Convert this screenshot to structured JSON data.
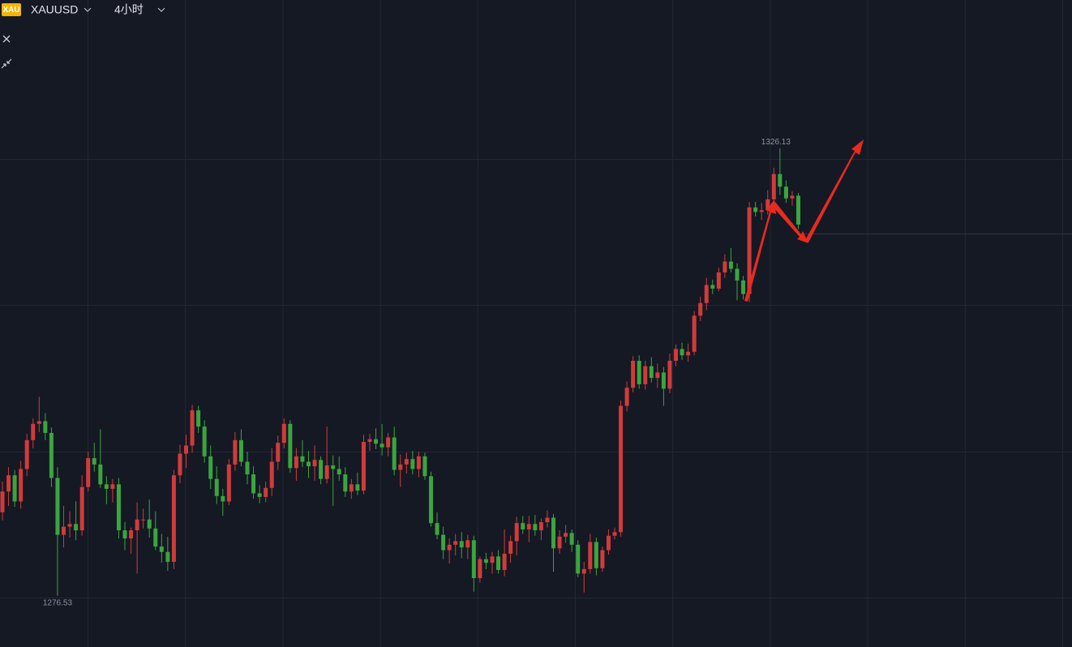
{
  "chart_data": {
    "type": "candlestick",
    "symbol_badge": "XAU",
    "symbol": "XAUUSD",
    "timeframe": "4小时",
    "up_color": "#d13b3b",
    "down_color": "#3aa53f",
    "ylim": [
      1270.86,
      1342.6
    ],
    "candles": [
      [
        1285.8,
        1289.2,
        1284.9,
        1288.1
      ],
      [
        1288.1,
        1290.8,
        1286.5,
        1289.9
      ],
      [
        1289.9,
        1290.5,
        1286.4,
        1287.0
      ],
      [
        1287.0,
        1291.5,
        1286.2,
        1290.6
      ],
      [
        1290.6,
        1294.5,
        1289.8,
        1293.8
      ],
      [
        1293.8,
        1296.2,
        1292.9,
        1295.6
      ],
      [
        1295.6,
        1298.6,
        1294.7,
        1295.9
      ],
      [
        1295.9,
        1296.8,
        1293.8,
        1294.6
      ],
      [
        1294.6,
        1295.2,
        1288.6,
        1289.6
      ],
      [
        1289.6,
        1290.8,
        1276.53,
        1283.3
      ],
      [
        1283.3,
        1286.5,
        1281.9,
        1284.2
      ],
      [
        1284.2,
        1285.9,
        1283.0,
        1284.5
      ],
      [
        1284.5,
        1287.0,
        1282.7,
        1283.8
      ],
      [
        1283.8,
        1289.9,
        1283.2,
        1288.6
      ],
      [
        1288.6,
        1292.5,
        1288.1,
        1291.8
      ],
      [
        1291.8,
        1293.5,
        1290.3,
        1291.1
      ],
      [
        1291.1,
        1295.0,
        1288.5,
        1288.9
      ],
      [
        1288.9,
        1289.8,
        1286.7,
        1288.4
      ],
      [
        1288.4,
        1289.5,
        1286.9,
        1288.9
      ],
      [
        1288.9,
        1289.6,
        1282.9,
        1283.8
      ],
      [
        1283.8,
        1284.7,
        1281.6,
        1282.9
      ],
      [
        1282.9,
        1284.1,
        1281.2,
        1283.8
      ],
      [
        1283.8,
        1286.9,
        1279.0,
        1285.0
      ],
      [
        1285.0,
        1286.2,
        1284.0,
        1285.0
      ],
      [
        1285.0,
        1287.2,
        1283.0,
        1284.0
      ],
      [
        1284.0,
        1285.9,
        1281.6,
        1282.0
      ],
      [
        1282.0,
        1283.4,
        1280.2,
        1281.4
      ],
      [
        1281.4,
        1283.1,
        1279.3,
        1280.3
      ],
      [
        1280.3,
        1290.5,
        1279.5,
        1289.9
      ],
      [
        1289.9,
        1293.3,
        1289.0,
        1292.3
      ],
      [
        1292.3,
        1294.4,
        1290.7,
        1293.2
      ],
      [
        1293.2,
        1297.7,
        1292.4,
        1297.1
      ],
      [
        1297.1,
        1297.6,
        1294.6,
        1295.3
      ],
      [
        1295.3,
        1296.0,
        1291.3,
        1292.0
      ],
      [
        1292.0,
        1293.2,
        1288.4,
        1289.5
      ],
      [
        1289.5,
        1290.9,
        1286.7,
        1287.6
      ],
      [
        1287.6,
        1288.4,
        1285.4,
        1287.0
      ],
      [
        1287.0,
        1291.7,
        1286.6,
        1291.1
      ],
      [
        1291.1,
        1294.7,
        1290.4,
        1293.8
      ],
      [
        1293.8,
        1295.0,
        1290.9,
        1291.4
      ],
      [
        1291.4,
        1292.5,
        1288.9,
        1290.0
      ],
      [
        1290.0,
        1290.9,
        1287.3,
        1287.9
      ],
      [
        1287.9,
        1288.8,
        1286.8,
        1287.5
      ],
      [
        1287.5,
        1289.2,
        1286.9,
        1288.5
      ],
      [
        1288.5,
        1292.9,
        1287.6,
        1291.4
      ],
      [
        1291.4,
        1294.3,
        1290.5,
        1293.5
      ],
      [
        1293.5,
        1296.2,
        1292.9,
        1295.6
      ],
      [
        1295.6,
        1296.0,
        1290.2,
        1290.7
      ],
      [
        1290.7,
        1292.9,
        1289.3,
        1292.0
      ],
      [
        1292.0,
        1293.8,
        1290.8,
        1291.4
      ],
      [
        1291.4,
        1292.6,
        1289.6,
        1290.9
      ],
      [
        1290.9,
        1293.2,
        1289.3,
        1291.6
      ],
      [
        1291.6,
        1292.0,
        1288.9,
        1289.5
      ],
      [
        1289.5,
        1295.3,
        1289.0,
        1291.0
      ],
      [
        1291.0,
        1292.1,
        1286.5,
        1290.6
      ],
      [
        1290.6,
        1292.0,
        1289.3,
        1290.0
      ],
      [
        1290.0,
        1290.8,
        1287.5,
        1288.1
      ],
      [
        1288.1,
        1289.5,
        1287.3,
        1288.9
      ],
      [
        1288.9,
        1290.2,
        1287.7,
        1288.2
      ],
      [
        1288.2,
        1294.4,
        1287.8,
        1293.6
      ],
      [
        1293.6,
        1294.5,
        1292.6,
        1293.9
      ],
      [
        1293.9,
        1295.1,
        1292.8,
        1293.4
      ],
      [
        1293.4,
        1295.6,
        1292.1,
        1293.0
      ],
      [
        1293.0,
        1294.6,
        1292.0,
        1294.1
      ],
      [
        1294.1,
        1295.3,
        1289.9,
        1290.5
      ],
      [
        1290.5,
        1292.2,
        1288.6,
        1291.1
      ],
      [
        1291.1,
        1292.4,
        1290.1,
        1291.7
      ],
      [
        1291.7,
        1292.6,
        1290.0,
        1290.6
      ],
      [
        1290.6,
        1292.5,
        1289.7,
        1292.0
      ],
      [
        1292.0,
        1292.4,
        1289.4,
        1289.8
      ],
      [
        1289.8,
        1290.3,
        1284.2,
        1284.6
      ],
      [
        1284.6,
        1285.8,
        1282.8,
        1283.3
      ],
      [
        1283.3,
        1284.2,
        1280.6,
        1281.6
      ],
      [
        1281.6,
        1282.9,
        1280.1,
        1282.2
      ],
      [
        1282.2,
        1283.4,
        1281.0,
        1282.6
      ],
      [
        1282.6,
        1283.6,
        1280.7,
        1281.9
      ],
      [
        1281.9,
        1283.3,
        1280.6,
        1282.7
      ],
      [
        1282.7,
        1283.2,
        1277.0,
        1278.5
      ],
      [
        1278.5,
        1280.9,
        1278.0,
        1280.6
      ],
      [
        1280.6,
        1281.3,
        1279.5,
        1280.2
      ],
      [
        1280.2,
        1281.4,
        1279.0,
        1280.9
      ],
      [
        1280.9,
        1281.6,
        1279.0,
        1279.4
      ],
      [
        1279.4,
        1283.9,
        1278.7,
        1281.2
      ],
      [
        1281.2,
        1283.2,
        1280.2,
        1282.6
      ],
      [
        1282.6,
        1285.3,
        1281.0,
        1284.6
      ],
      [
        1284.6,
        1285.4,
        1283.4,
        1283.9
      ],
      [
        1283.9,
        1285.4,
        1282.5,
        1284.5
      ],
      [
        1284.5,
        1285.5,
        1283.2,
        1283.8
      ],
      [
        1283.8,
        1285.1,
        1282.7,
        1284.7
      ],
      [
        1284.7,
        1286.0,
        1284.1,
        1285.2
      ],
      [
        1285.2,
        1285.6,
        1279.2,
        1281.8
      ],
      [
        1281.8,
        1283.8,
        1281.2,
        1283.1
      ],
      [
        1283.1,
        1284.4,
        1282.4,
        1283.5
      ],
      [
        1283.5,
        1283.9,
        1281.4,
        1282.2
      ],
      [
        1282.2,
        1282.7,
        1278.6,
        1279.0
      ],
      [
        1279.0,
        1280.3,
        1276.9,
        1279.5
      ],
      [
        1279.5,
        1283.4,
        1279.0,
        1282.5
      ],
      [
        1282.5,
        1283.0,
        1278.8,
        1279.6
      ],
      [
        1279.6,
        1282.0,
        1279.2,
        1281.6
      ],
      [
        1281.6,
        1283.9,
        1281.1,
        1283.2
      ],
      [
        1283.2,
        1284.1,
        1282.8,
        1283.6
      ],
      [
        1283.6,
        1298.2,
        1283.1,
        1297.6
      ],
      [
        1297.6,
        1300.3,
        1297.0,
        1299.6
      ],
      [
        1299.6,
        1303.1,
        1299.1,
        1302.6
      ],
      [
        1302.6,
        1303.2,
        1299.5,
        1300.0
      ],
      [
        1300.0,
        1302.6,
        1299.4,
        1302.0
      ],
      [
        1302.0,
        1303.0,
        1300.2,
        1300.7
      ],
      [
        1300.7,
        1302.3,
        1299.6,
        1301.3
      ],
      [
        1301.3,
        1301.9,
        1297.6,
        1299.5
      ],
      [
        1299.5,
        1303.4,
        1299.0,
        1302.6
      ],
      [
        1302.6,
        1304.4,
        1302.0,
        1303.9
      ],
      [
        1303.9,
        1304.6,
        1302.7,
        1303.2
      ],
      [
        1303.2,
        1304.5,
        1302.5,
        1303.6
      ],
      [
        1303.6,
        1308.1,
        1303.2,
        1307.6
      ],
      [
        1307.6,
        1309.7,
        1307.0,
        1309.0
      ],
      [
        1309.0,
        1311.8,
        1308.2,
        1311.0
      ],
      [
        1311.0,
        1311.6,
        1310.0,
        1310.6
      ],
      [
        1310.6,
        1312.9,
        1310.3,
        1312.4
      ],
      [
        1312.4,
        1314.4,
        1311.8,
        1313.6
      ],
      [
        1313.6,
        1315.1,
        1312.4,
        1312.8
      ],
      [
        1312.8,
        1313.4,
        1309.3,
        1311.5
      ],
      [
        1311.5,
        1312.0,
        1309.4,
        1310.0
      ],
      [
        1310.0,
        1320.2,
        1309.1,
        1319.6
      ],
      [
        1319.6,
        1320.2,
        1318.6,
        1319.1
      ],
      [
        1319.1,
        1320.1,
        1318.2,
        1319.3
      ],
      [
        1319.3,
        1321.5,
        1318.8,
        1320.5
      ],
      [
        1320.5,
        1324.0,
        1320.0,
        1323.3
      ],
      [
        1323.3,
        1326.13,
        1321.0,
        1321.9
      ],
      [
        1321.9,
        1322.6,
        1320.1,
        1320.6
      ],
      [
        1320.6,
        1321.4,
        1319.8,
        1320.9
      ],
      [
        1320.9,
        1321.2,
        1317.2,
        1317.7
      ]
    ]
  }
}
